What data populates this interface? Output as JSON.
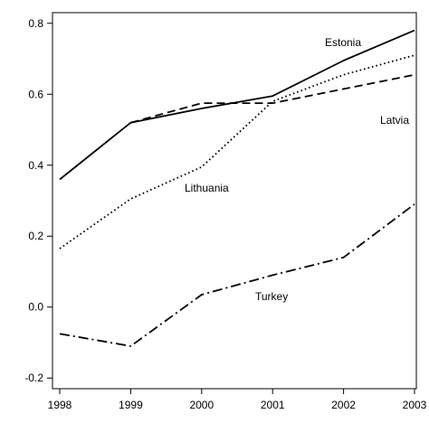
{
  "chart_data": {
    "type": "line",
    "title": "",
    "xlabel": "",
    "ylabel": "",
    "x": [
      1998,
      1999,
      2000,
      2001,
      2002,
      2003
    ],
    "xlim": [
      1998,
      2003
    ],
    "ylim": [
      -0.23,
      0.83
    ],
    "yticks": [
      -0.2,
      0.0,
      0.2,
      0.4,
      0.6,
      0.8
    ],
    "ytick_labels": [
      "-0.2",
      "0.0",
      "0.2",
      "0.4",
      "0.6",
      "0.8"
    ],
    "xtick_labels": [
      "1998",
      "1999",
      "2000",
      "2001",
      "2002",
      "2003"
    ],
    "grid": false,
    "legend": "none",
    "series": [
      {
        "name": "Estonia",
        "values": [
          0.36,
          0.52,
          0.56,
          0.595,
          0.695,
          0.78
        ],
        "color": "#000000",
        "dash": "solid"
      },
      {
        "name": "Latvia",
        "values": [
          null,
          0.52,
          0.575,
          0.575,
          0.615,
          0.655
        ],
        "color": "#000000",
        "dash": "dashed"
      },
      {
        "name": "Lithuania",
        "values": [
          0.165,
          0.305,
          0.395,
          0.58,
          0.655,
          0.71
        ],
        "color": "#000000",
        "dash": "dotted"
      },
      {
        "name": "Turkey",
        "values": [
          -0.075,
          -0.11,
          0.035,
          0.09,
          0.14,
          0.29
        ],
        "color": "#000000",
        "dash": "dash-dot"
      }
    ]
  }
}
